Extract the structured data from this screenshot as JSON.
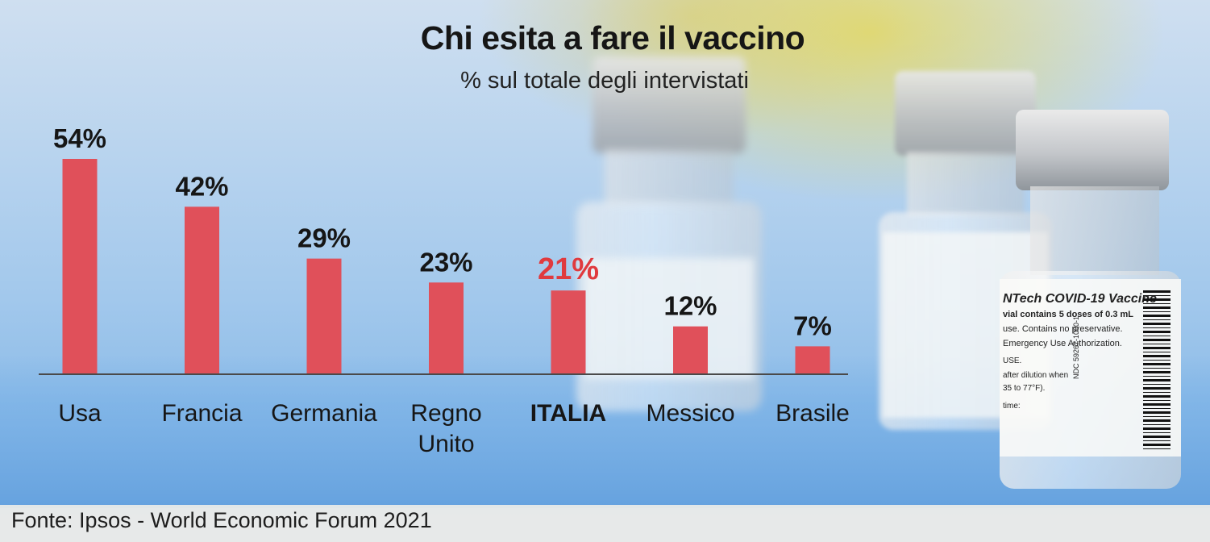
{
  "chart_data": {
    "type": "bar",
    "title": "Chi esita a fare il vaccino",
    "subtitle": "% sul totale degli intervistati",
    "categories": [
      "Usa",
      "Francia",
      "Germania",
      "Regno Unito",
      "ITALIA",
      "Messico",
      "Brasile"
    ],
    "values": [
      54,
      42,
      29,
      23,
      21,
      12,
      7
    ],
    "value_labels": [
      "54%",
      "42%",
      "29%",
      "23%",
      "21%",
      "12%",
      "7%"
    ],
    "highlight": "ITALIA",
    "xlabel": "",
    "ylabel": "",
    "ylim": [
      0,
      54
    ],
    "grid": false,
    "legend": "none",
    "colors": {
      "bar": "#e0505a",
      "highlight_label": "#e03a3e",
      "label": "#161616",
      "baseline": "#4a4a4a"
    }
  },
  "photo_label": {
    "line1": "NTech COVID-19 Vaccine",
    "line2": "vial contains 5 doses of 0.3 mL",
    "line3": "use. Contains no preservative.",
    "line4": "Emergency Use Authorization.",
    "line5": "USE.",
    "line6": "after dilution when",
    "line7": "35 to 77°F).",
    "line8": "time:",
    "ndc": "NDC 59267-1000-1"
  },
  "source": "Fonte: Ipsos -  World Economic Forum 2021"
}
